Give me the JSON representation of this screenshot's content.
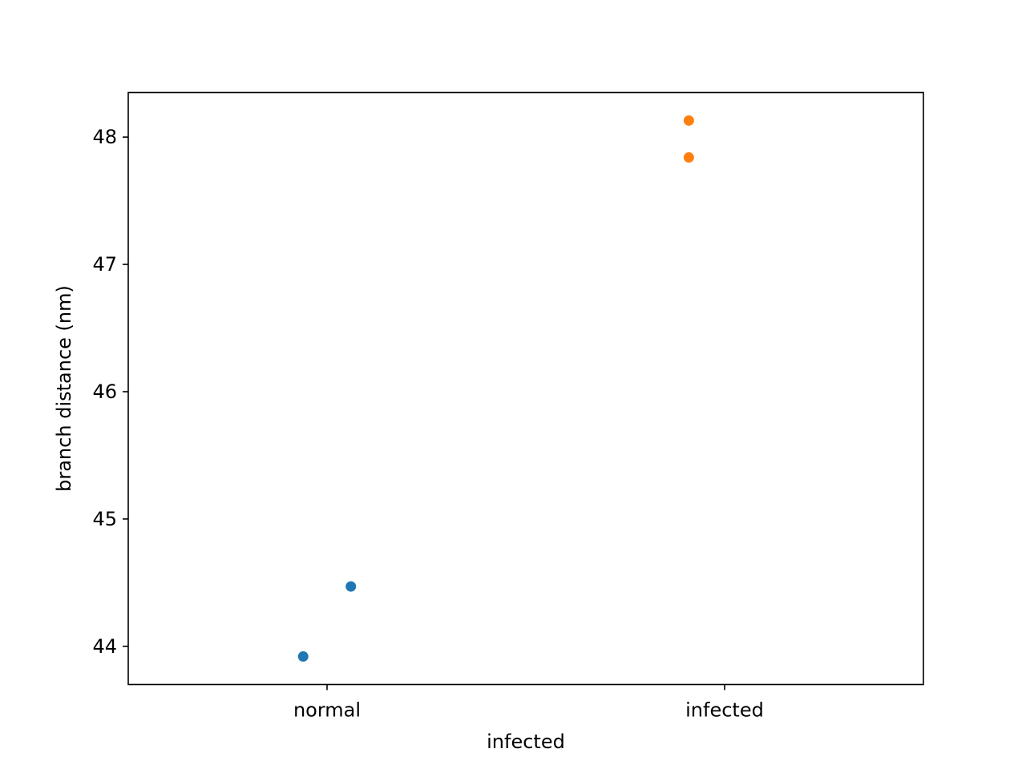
{
  "chart_data": {
    "type": "scatter",
    "title": "",
    "xlabel": "infected",
    "ylabel": "branch distance (nm)",
    "categories": [
      "normal",
      "infected"
    ],
    "y_ticks": [
      "44",
      "45",
      "46",
      "47",
      "48"
    ],
    "ylim": [
      43.7,
      48.35
    ],
    "grid": false,
    "legend": "none",
    "series": [
      {
        "category": "normal",
        "color": "#1f77b4",
        "points": [
          {
            "jitter": -0.06,
            "y": 43.92
          },
          {
            "jitter": 0.06,
            "y": 44.47
          }
        ]
      },
      {
        "category": "infected",
        "color": "#ff7f0e",
        "points": [
          {
            "jitter": -0.09,
            "y": 48.13
          },
          {
            "jitter": -0.09,
            "y": 47.84
          }
        ]
      }
    ]
  }
}
